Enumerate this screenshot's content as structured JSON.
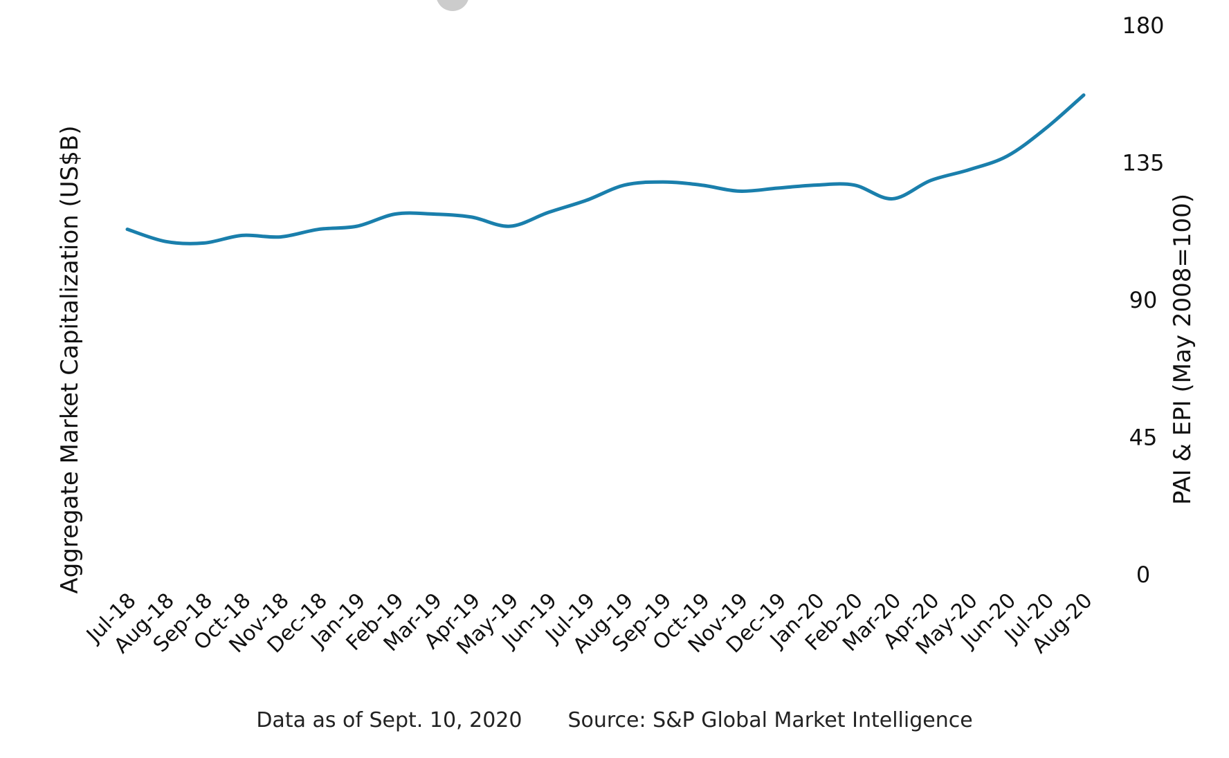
{
  "chart_data": {
    "type": "line",
    "legend": {
      "entries": [
        {
          "name": "",
          "color": "#cccccc"
        }
      ]
    },
    "x": [
      "Jul-18",
      "Aug-18",
      "Sep-18",
      "Oct-18",
      "Nov-18",
      "Dec-18",
      "Jan-19",
      "Feb-19",
      "Mar-19",
      "Apr-19",
      "May-19",
      "Jun-19",
      "Jul-19",
      "Aug-19",
      "Sep-19",
      "Oct-19",
      "Nov-19",
      "Dec-19",
      "Jan-20",
      "Feb-20",
      "Mar-20",
      "Apr-20",
      "May-20",
      "Jun-20",
      "Jul-20",
      "Aug-20"
    ],
    "series": [
      {
        "name": "",
        "color": "#1a7fac",
        "values": [
          113,
          109,
          108.5,
          111,
          110.5,
          113,
          114,
          118,
          118,
          117,
          114,
          118.5,
          122.5,
          127.5,
          128.5,
          127.5,
          125.5,
          126.5,
          127.5,
          127.5,
          123,
          129,
          132.5,
          137,
          146,
          157
        ]
      }
    ],
    "ylabel_left": "Aggregate Market Capitalization (US$B)",
    "ylabel_right": "PAI & EPI (May 2008=100)",
    "y_right_ticks": [
      "0",
      "45",
      "90",
      "135",
      "180"
    ],
    "ylim_right": [
      0,
      180
    ],
    "grid": false
  },
  "footer": {
    "date_note": "Data as of Sept. 10, 2020",
    "source": "Source: S&P Global Market Intelligence"
  }
}
